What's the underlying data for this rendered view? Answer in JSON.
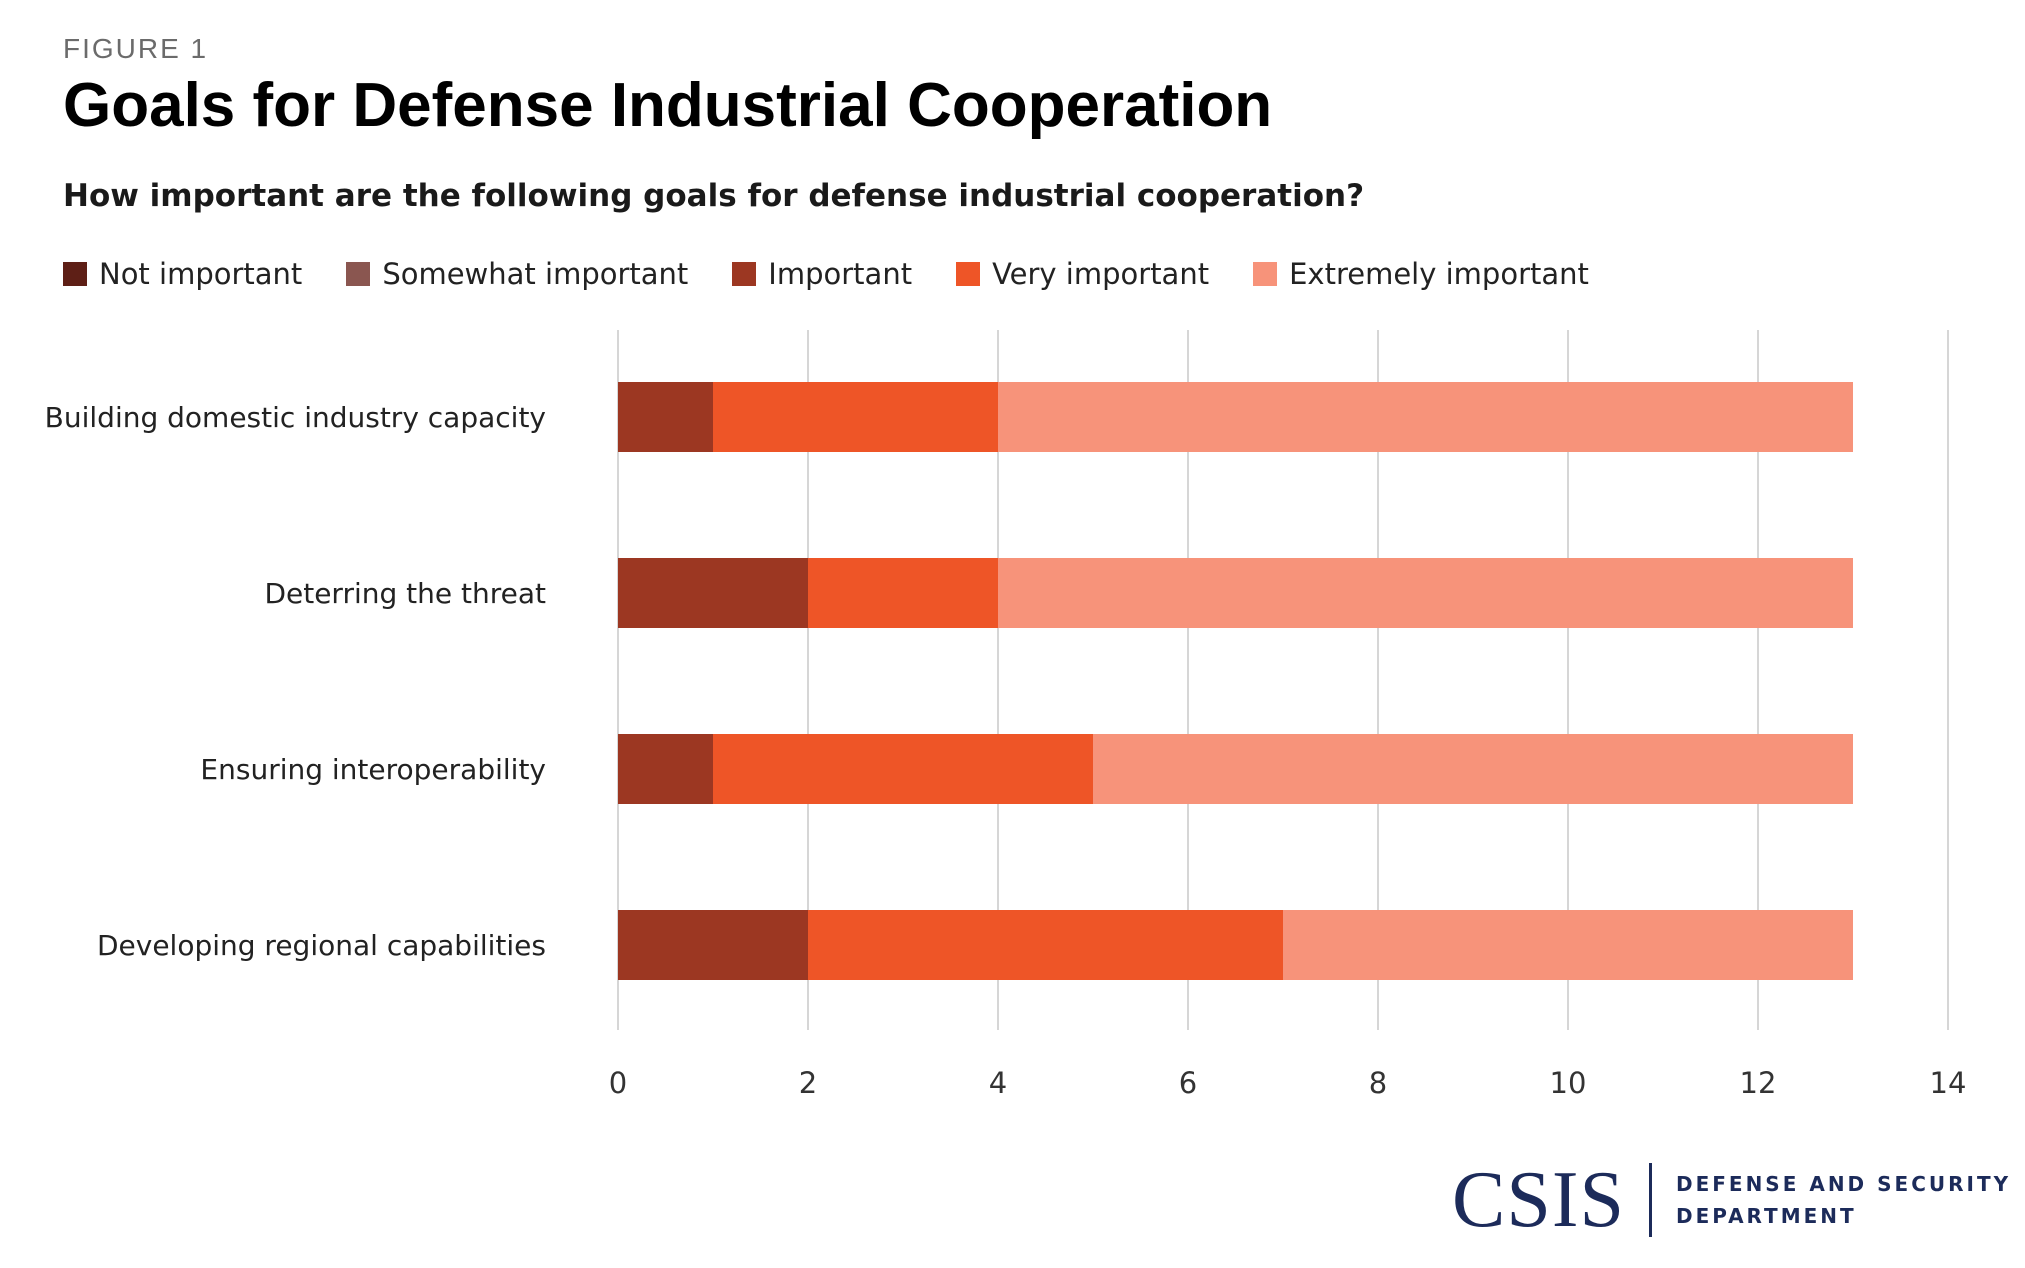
{
  "figure_label": "FIGURE 1",
  "logo": {
    "mark": "CSIS",
    "dept_line1": "DEFENSE AND SECURITY",
    "dept_line2": "DEPARTMENT"
  },
  "colors": {
    "Not important": "#5e1f16",
    "Somewhat important": "#8a5650",
    "Important": "#9c3722",
    "Very important": "#ee5527",
    "Extremely important": "#f7937a",
    "gridline": "#c8c8c8"
  },
  "chart_data": {
    "type": "bar",
    "orientation": "horizontal",
    "stacked": true,
    "title": "Goals for Defense Industrial Cooperation",
    "subtitle": "How important are the following goals for defense industrial cooperation?",
    "categories": [
      "Building domestic industry capacity",
      "Deterring the threat",
      "Ensuring interoperability",
      "Developing regional capabilities"
    ],
    "series": [
      {
        "name": "Not important",
        "values": [
          0,
          0,
          0,
          0
        ]
      },
      {
        "name": "Somewhat important",
        "values": [
          0,
          0,
          0,
          0
        ]
      },
      {
        "name": "Important",
        "values": [
          1,
          2,
          1,
          2
        ]
      },
      {
        "name": "Very important",
        "values": [
          3,
          2,
          4,
          5
        ]
      },
      {
        "name": "Extremely important",
        "values": [
          9,
          9,
          8,
          6
        ]
      }
    ],
    "xlim": [
      0,
      14
    ],
    "xticks": [
      0,
      2,
      4,
      6,
      8,
      10,
      12,
      14
    ],
    "grid": true,
    "legend_position": "top-left"
  }
}
